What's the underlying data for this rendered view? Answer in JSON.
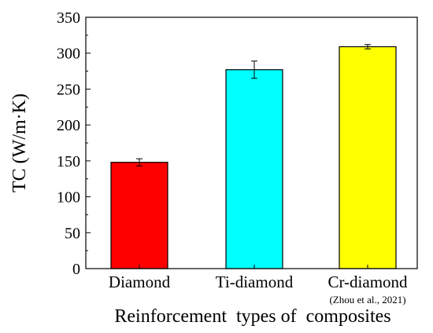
{
  "chart_data": {
    "type": "bar",
    "categories": [
      "Diamond",
      "Ti-diamond",
      "Cr-diamond"
    ],
    "values": [
      148,
      277,
      309
    ],
    "errors": [
      5,
      12,
      3
    ],
    "colors": [
      "#ff0000",
      "#00ffff",
      "#ffff00"
    ],
    "annotation": "(Zhou et al., 2021)",
    "xlabel": "Reinforcement  types of  composites",
    "ylabel": "TC (W/m·K)",
    "ylim": [
      0,
      350
    ],
    "yticks": [
      "0",
      "50",
      "100",
      "150",
      "200",
      "250",
      "300",
      "350"
    ],
    "grid": false
  }
}
